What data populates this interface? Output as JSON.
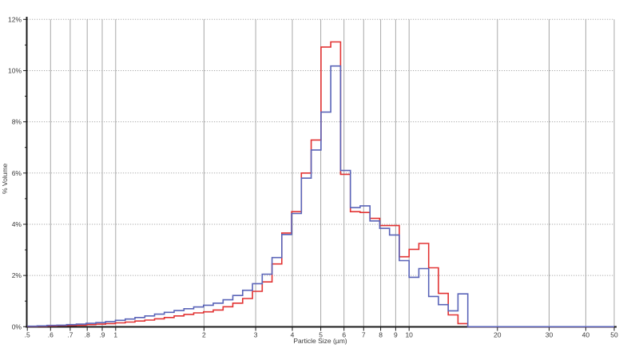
{
  "chart_data": {
    "type": "step-histogram",
    "title": "",
    "xlabel": "Particle Size (µm)",
    "ylabel": "% Volume",
    "x_scale": "log",
    "xlim": [
      0.5,
      50
    ],
    "ylim": [
      0,
      12
    ],
    "grid": {
      "horizontal": "dotted",
      "vertical": "solid"
    },
    "legend": "none",
    "x_tick_labels": [
      ".5",
      ".6",
      ".7",
      ".8",
      ".9",
      "1",
      "2",
      "3",
      "4",
      "5",
      "6",
      "7",
      "8",
      "9",
      "10",
      "20",
      "30",
      "40",
      "50"
    ],
    "x_tick_values": [
      0.5,
      0.6,
      0.7,
      0.8,
      0.9,
      1,
      2,
      3,
      4,
      5,
      6,
      7,
      8,
      9,
      10,
      20,
      30,
      40,
      50
    ],
    "y_tick_labels": [
      "0%",
      "2%",
      "4%",
      "6%",
      "8%",
      "10%",
      "12%"
    ],
    "y_tick_values": [
      0,
      2,
      4,
      6,
      8,
      10,
      12
    ],
    "y_minor_tick_step": 1,
    "bin_edges": [
      0.5,
      0.54,
      0.583,
      0.63,
      0.68,
      0.734,
      0.793,
      0.856,
      0.924,
      0.998,
      1.078,
      1.164,
      1.257,
      1.357,
      1.465,
      1.582,
      1.709,
      1.845,
      1.992,
      2.151,
      2.323,
      2.508,
      2.709,
      2.925,
      3.158,
      3.411,
      3.683,
      3.977,
      4.295,
      4.638,
      5.008,
      5.408,
      5.84,
      6.307,
      6.81,
      7.354,
      7.942,
      8.577,
      9.261,
      10.0,
      10.798,
      11.659,
      12.589,
      13.594,
      14.678,
      15.849,
      17.113,
      18.478,
      19.953,
      21.544,
      23.263,
      25.119,
      27.123,
      29.286,
      31.623,
      34.145,
      36.869,
      39.811,
      42.987,
      46.416,
      50.0
    ],
    "series": [
      {
        "name": "red-sample",
        "color": "#e23333",
        "values": [
          0.01,
          0.02,
          0.03,
          0.04,
          0.05,
          0.06,
          0.08,
          0.1,
          0.12,
          0.15,
          0.18,
          0.22,
          0.26,
          0.31,
          0.36,
          0.42,
          0.48,
          0.54,
          0.58,
          0.65,
          0.78,
          0.92,
          1.1,
          1.38,
          1.75,
          2.45,
          3.66,
          4.49,
          6.0,
          7.29,
          10.92,
          11.12,
          5.95,
          4.49,
          4.46,
          4.23,
          3.95,
          3.95,
          2.73,
          3.02,
          3.25,
          2.3,
          1.3,
          0.46,
          0.12,
          0,
          0,
          0,
          0,
          0,
          0,
          0,
          0,
          0,
          0,
          0,
          0,
          0,
          0,
          0
        ]
      },
      {
        "name": "blue-sample",
        "color": "#5a64b8",
        "values": [
          0.02,
          0.03,
          0.05,
          0.06,
          0.08,
          0.1,
          0.13,
          0.16,
          0.2,
          0.25,
          0.3,
          0.36,
          0.42,
          0.49,
          0.56,
          0.63,
          0.7,
          0.77,
          0.84,
          0.92,
          1.05,
          1.22,
          1.42,
          1.68,
          2.05,
          2.7,
          3.6,
          4.42,
          5.8,
          6.9,
          8.38,
          10.18,
          6.1,
          4.65,
          4.72,
          4.13,
          3.84,
          3.58,
          2.58,
          1.93,
          2.27,
          1.18,
          0.86,
          0.62,
          1.28,
          0,
          0,
          0,
          0,
          0,
          0,
          0,
          0,
          0,
          0,
          0,
          0,
          0,
          0,
          0
        ]
      }
    ],
    "colors": {
      "axis": "#1a1a1a",
      "v_grid": "#a8a8a8",
      "h_grid": "#999999",
      "background": "#ffffff"
    }
  }
}
